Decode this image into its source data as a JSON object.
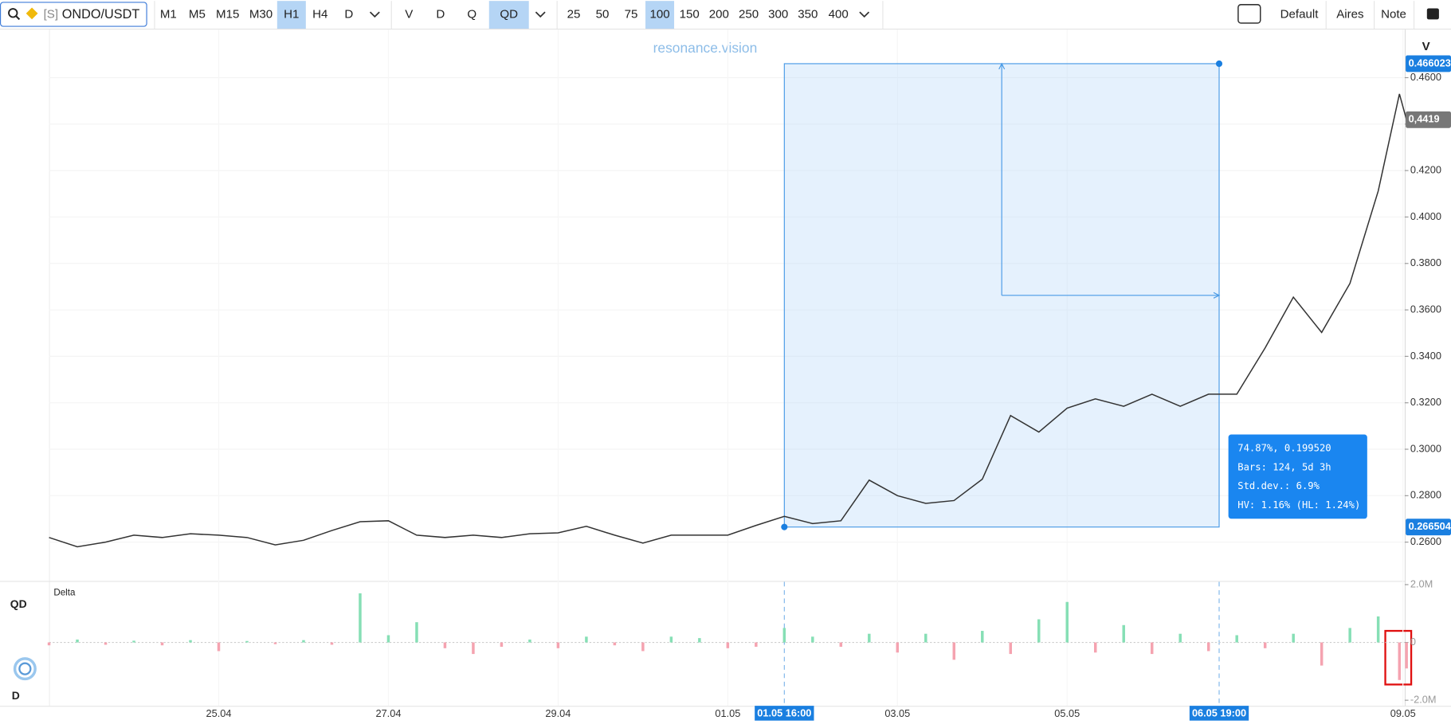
{
  "toolbar": {
    "symbol_prefix": "[S]",
    "symbol": "ONDO/USDT",
    "timeframes": [
      {
        "label": "M1"
      },
      {
        "label": "M5"
      },
      {
        "label": "M15"
      },
      {
        "label": "M30"
      },
      {
        "label": "H1",
        "active": true
      },
      {
        "label": "H4"
      },
      {
        "label": "D"
      }
    ],
    "modes": [
      {
        "label": "V"
      },
      {
        "label": "D"
      },
      {
        "label": "Q"
      },
      {
        "label": "QD",
        "active": true
      }
    ],
    "sizes": [
      {
        "label": "25"
      },
      {
        "label": "50"
      },
      {
        "label": "75"
      },
      {
        "label": "100",
        "active": true
      },
      {
        "label": "150"
      },
      {
        "label": "200"
      },
      {
        "label": "250"
      },
      {
        "label": "300"
      },
      {
        "label": "350"
      },
      {
        "label": "400"
      }
    ],
    "right": [
      "Default",
      "Aires",
      "Note"
    ]
  },
  "watermark": "resonance.vision",
  "axis_header": "V",
  "side_labels": {
    "top": "QD",
    "bottom": "D"
  },
  "chart_data": [
    {
      "type": "line",
      "color": "#333333",
      "x": [
        0,
        8,
        16,
        24,
        32,
        40,
        48,
        56,
        64,
        72,
        80,
        88,
        96,
        104,
        112,
        120,
        128,
        136,
        144,
        152,
        160,
        168,
        176,
        184,
        192,
        200,
        208,
        216,
        224,
        232,
        240,
        248,
        256,
        264,
        272,
        280,
        288,
        296,
        304,
        312,
        320,
        328,
        336,
        344,
        352,
        360,
        368,
        376,
        382,
        384
      ],
      "values": [
        0.262,
        0.258,
        0.26,
        0.263,
        0.262,
        0.2636,
        0.263,
        0.262,
        0.2588,
        0.2608,
        0.265,
        0.2688,
        0.2692,
        0.263,
        0.262,
        0.263,
        0.262,
        0.2636,
        0.264,
        0.2668,
        0.263,
        0.2596,
        0.263,
        0.263,
        0.263,
        0.2672,
        0.2711,
        0.268,
        0.2692,
        0.2867,
        0.28,
        0.2767,
        0.2779,
        0.2871,
        0.3145,
        0.3074,
        0.3177,
        0.3217,
        0.3185,
        0.3237,
        0.3185,
        0.3237,
        0.3237,
        0.3436,
        0.3655,
        0.3503,
        0.3714,
        0.4112,
        0.453,
        0.4419
      ],
      "xlim": [
        0,
        383.5
      ],
      "xticks": [
        {
          "value": 48,
          "label": "25.04"
        },
        {
          "value": 96,
          "label": "27.04"
        },
        {
          "value": 144,
          "label": "29.04"
        },
        {
          "value": 192,
          "label": "01.05"
        },
        {
          "value": 240,
          "label": "03.05"
        },
        {
          "value": 288,
          "label": "05.05"
        },
        {
          "value": 383,
          "label": "09.05"
        }
      ],
      "ylim": [
        0.2433,
        0.4791
      ],
      "yticks": [
        {
          "value": 0.26,
          "label": "0.2600"
        },
        {
          "value": 0.28,
          "label": "0.2800"
        },
        {
          "value": 0.3,
          "label": "0.3000"
        },
        {
          "value": 0.32,
          "label": "0.3200"
        },
        {
          "value": 0.34,
          "label": "0.3400"
        },
        {
          "value": 0.36,
          "label": "0.3600"
        },
        {
          "value": 0.38,
          "label": "0.3800"
        },
        {
          "value": 0.4,
          "label": "0.4000"
        },
        {
          "value": 0.42,
          "label": "0.4200"
        },
        {
          "value": 0.44,
          "label": "0.4400"
        },
        {
          "value": 0.46,
          "label": "0.4600"
        }
      ],
      "last_price": {
        "value": 0.4419,
        "label": "0,4419"
      },
      "grid": true,
      "measurement": {
        "start_x": 208,
        "end_x": 331,
        "start_price": 0.266504,
        "end_price": 0.466023,
        "start_label": "01.05 16:00",
        "end_label": "06.05 19:00",
        "info": [
          "74.87%, 0.199520",
          "Bars: 124, 5d 3h",
          "Std.dev.: 6.9%",
          "HV: 1.16% (HL: 1.24%)"
        ]
      }
    },
    {
      "type": "bar",
      "title": "Delta",
      "positive_color": "#86dfb5",
      "negative_color": "#f5a3b0",
      "x": [
        0,
        8,
        16,
        24,
        32,
        40,
        48,
        56,
        64,
        72,
        80,
        88,
        96,
        104,
        112,
        120,
        128,
        136,
        144,
        152,
        160,
        168,
        176,
        184,
        192,
        200,
        208,
        216,
        224,
        232,
        240,
        248,
        256,
        264,
        272,
        280,
        288,
        296,
        304,
        312,
        320,
        328,
        336,
        344,
        352,
        360,
        368,
        376,
        382,
        384
      ],
      "values": [
        -100000,
        100000,
        -80000,
        60000,
        -100000,
        80000,
        -300000,
        50000,
        -60000,
        80000,
        -80000,
        1700000,
        250000,
        700000,
        -200000,
        -400000,
        -150000,
        100000,
        -200000,
        200000,
        -100000,
        -300000,
        200000,
        150000,
        -200000,
        -150000,
        500000,
        200000,
        -150000,
        300000,
        -350000,
        300000,
        -600000,
        400000,
        -400000,
        800000,
        1400000,
        -350000,
        600000,
        -400000,
        300000,
        -300000,
        250000,
        -200000,
        300000,
        -800000,
        500000,
        900000,
        -1300000,
        -900000
      ],
      "xlim": [
        0,
        383.5
      ],
      "ylim": [
        -2000000,
        2000000
      ],
      "yticks": [
        {
          "value": 2000000,
          "label": "2.0M"
        },
        0,
        {
          "value": -2000000,
          "label": "-2.0M"
        }
      ]
    }
  ]
}
